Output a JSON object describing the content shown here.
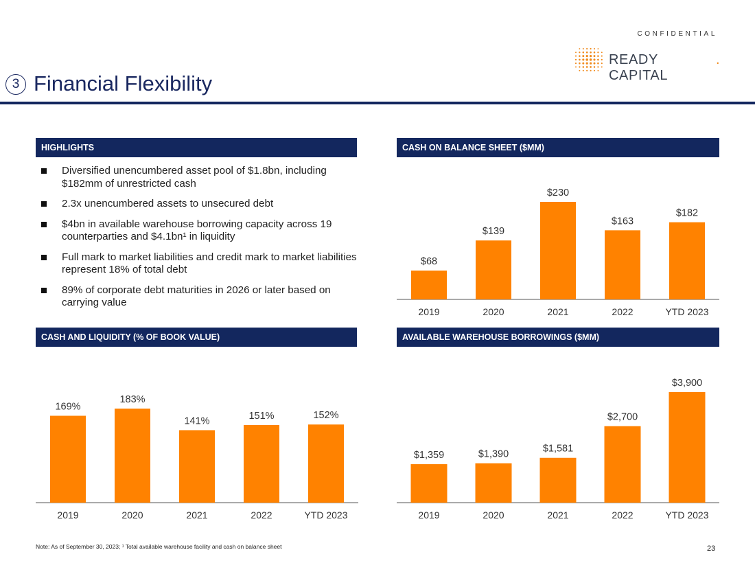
{
  "header": {
    "confidential": "CONFIDENTIAL",
    "logo_text": "READY CAPITAL",
    "logo_dot": ".",
    "section_number": "3",
    "title": "Financial Flexibility"
  },
  "colors": {
    "navy": "#13275e",
    "orange": "#ff8200",
    "logo_orange": "#f08a1c"
  },
  "highlights": {
    "heading": "HIGHLIGHTS",
    "items": [
      "Diversified unencumbered asset pool of $1.8bn, including $182mm of unrestricted cash",
      "2.3x unencumbered assets to unsecured debt",
      "$4bn in available warehouse borrowing capacity across 19 counterparties and $4.1bn¹ in liquidity",
      "Full mark to market liabilities and credit mark to market liabilities represent 18% of total debt",
      "89% of corporate debt maturities in 2026 or later based on carrying value"
    ]
  },
  "chart_data": [
    {
      "id": "cash-balance-sheet",
      "type": "bar",
      "title": "CASH ON BALANCE SHEET ($MM)",
      "categories": [
        "2019",
        "2020",
        "2021",
        "2022",
        "YTD 2023"
      ],
      "values": [
        68,
        139,
        230,
        163,
        182
      ],
      "labels": [
        "$68",
        "$139",
        "$230",
        "$163",
        "$182"
      ],
      "ylim": [
        0,
        230
      ],
      "color": "#ff8200"
    },
    {
      "id": "cash-liquidity",
      "type": "bar",
      "title": "CASH AND LIQUIDITY (% OF BOOK VALUE)",
      "categories": [
        "2019",
        "2020",
        "2021",
        "2022",
        "YTD 2023"
      ],
      "values": [
        169,
        183,
        141,
        151,
        152
      ],
      "labels": [
        "169%",
        "183%",
        "141%",
        "151%",
        "152%"
      ],
      "ylim": [
        0,
        183
      ],
      "color": "#ff8200"
    },
    {
      "id": "warehouse-borrowings",
      "type": "bar",
      "title": "AVAILABLE WAREHOUSE BORROWINGS ($MM)",
      "categories": [
        "2019",
        "2020",
        "2021",
        "2022",
        "YTD 2023"
      ],
      "values": [
        1359,
        1390,
        1581,
        2700,
        3900
      ],
      "labels": [
        "$1,359",
        "$1,390",
        "$1,581",
        "$2,700",
        "$3,900"
      ],
      "ylim": [
        0,
        3900
      ],
      "color": "#ff8200"
    }
  ],
  "footer": {
    "note": "Note: As of September 30, 2023; ¹ Total available warehouse facility and cash on balance sheet",
    "page_number": "23"
  }
}
